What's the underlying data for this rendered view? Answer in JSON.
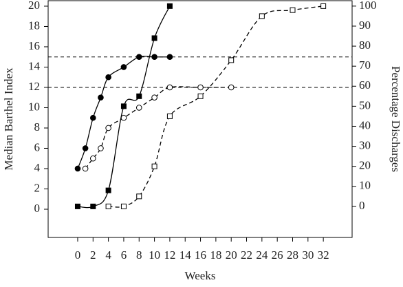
{
  "chart_data": {
    "type": "scatter",
    "xlabel": "Weeks",
    "ylabel": "Median Barthel Index",
    "y2label": "Percentage Discharges",
    "xlim": [
      -3.85,
      35.75
    ],
    "ylim": [
      -2.78,
      20.54
    ],
    "y2lim": [
      -15.5,
      102.7
    ],
    "xticks": [
      0,
      2,
      4,
      6,
      8,
      10,
      12,
      14,
      16,
      18,
      20,
      22,
      24,
      26,
      28,
      30,
      32
    ],
    "yticks": [
      0,
      2,
      4,
      6,
      8,
      10,
      12,
      14,
      16,
      18,
      20
    ],
    "y2ticks": [
      0,
      10,
      20,
      30,
      40,
      50,
      60,
      70,
      80,
      90,
      100
    ],
    "reference_lines": [
      15,
      12
    ],
    "series": [
      {
        "color": "#000000",
        "marker": "circle",
        "filled": true,
        "line": "solid",
        "x": [
          0,
          1,
          2,
          3,
          4,
          6,
          8,
          10,
          12
        ],
        "values": [
          4,
          6,
          9,
          11,
          13,
          14,
          15,
          15,
          15
        ]
      },
      {
        "color": "#000000",
        "marker": "circle",
        "filled": false,
        "line": "dashed",
        "x": [
          1,
          2,
          3,
          4,
          6,
          8,
          10,
          12,
          16,
          20
        ],
        "values": [
          4,
          5,
          6,
          8,
          9,
          10,
          11,
          12,
          12,
          12
        ]
      },
      {
        "color": "#000000",
        "marker": "square",
        "filled": true,
        "line": "solid",
        "axis": "y2",
        "x": [
          0,
          2,
          4,
          6,
          8,
          10,
          12
        ],
        "values": [
          0,
          0,
          8,
          50,
          55,
          84,
          100
        ]
      },
      {
        "color": "#000000",
        "marker": "square",
        "filled": false,
        "line": "dashed",
        "axis": "y2",
        "x": [
          4,
          6,
          8,
          10,
          12,
          16,
          20,
          24,
          28,
          32
        ],
        "values": [
          0,
          0,
          5,
          20,
          45,
          55,
          73,
          95,
          98,
          100
        ]
      }
    ]
  }
}
